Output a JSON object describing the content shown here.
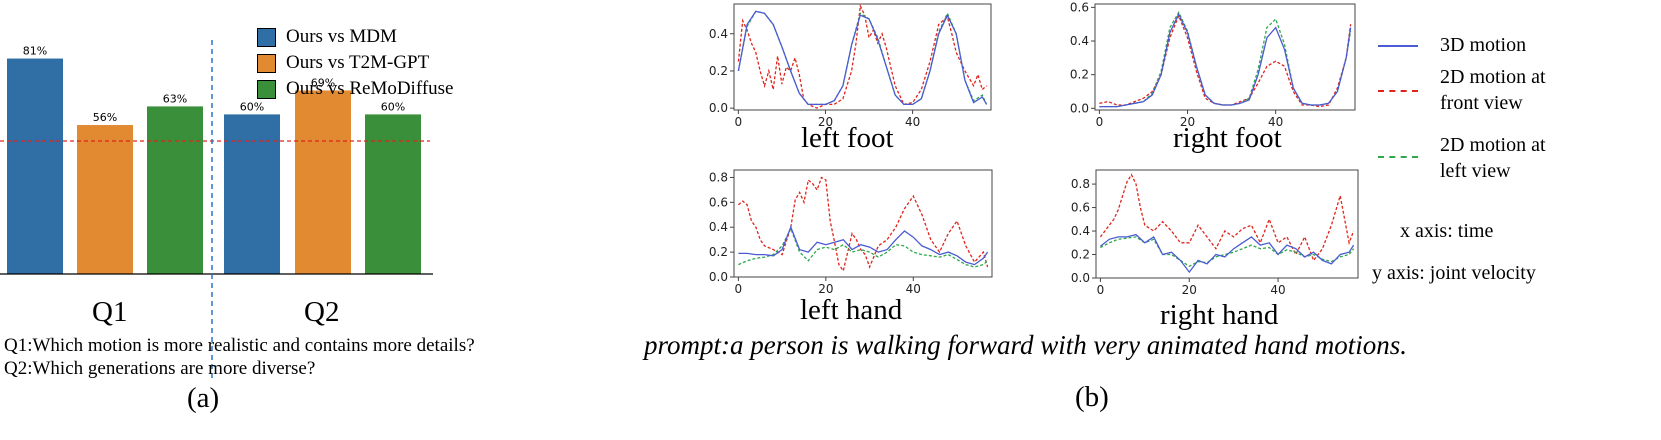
{
  "bar_chart": {
    "colors": [
      "#2f6fa5",
      "#e18a31",
      "#3a8f3a"
    ],
    "ref_line_color": "#e0241b",
    "divider_color": "#2a73c9"
  },
  "line_charts": {
    "colors": {
      "3d": "#4a5bd4",
      "front": "#e0241b",
      "left": "#2ea84a"
    }
  },
  "text": {
    "legend_a": [
      "Ours vs MDM",
      "Ours vs T2M-GPT",
      "Ours vs ReMoDiffuse"
    ],
    "q1": "Q1",
    "q2": "Q2",
    "question1": "Q1:Which motion is more realistic and contains more details?",
    "question2": "Q2:Which generations are more diverse?",
    "label_a": "(a)",
    "label_b": "(b)",
    "legend_b_3d": "3D motion",
    "legend_b_front_1": "2D motion at",
    "legend_b_front_2": "front view",
    "legend_b_left_1": "2D motion at",
    "legend_b_left_2": "left view",
    "x_axis_note": "x axis: time",
    "y_axis_note": "y axis: joint velocity",
    "prompt": "prompt:a person is walking forward with very animated hand motions."
  },
  "chart_data": [
    {
      "type": "bar",
      "groups": [
        "Q1",
        "Q2"
      ],
      "series": [
        {
          "name": "Ours vs MDM",
          "values": [
            81,
            60
          ],
          "labels": [
            "81%",
            "60%"
          ]
        },
        {
          "name": "Ours vs T2M-GPT",
          "values": [
            56,
            69
          ],
          "labels": [
            "56%",
            "69%"
          ]
        },
        {
          "name": "Ours vs ReMoDiffuse",
          "values": [
            63,
            60
          ],
          "labels": [
            "63%",
            "60%"
          ]
        }
      ],
      "reference_line": 50,
      "ylim": [
        0,
        100
      ]
    },
    {
      "type": "line",
      "title": "left foot",
      "xlim": [
        -1,
        58
      ],
      "ylim": [
        -0.01,
        0.56
      ],
      "xticks": [
        0,
        20,
        40
      ],
      "yticks": [
        0.0,
        0.2,
        0.4
      ],
      "series": [
        {
          "name": "3D motion",
          "x": [
            0,
            2,
            4,
            6,
            8,
            10,
            12,
            14,
            16,
            18,
            20,
            22,
            24,
            26,
            28,
            30,
            32,
            34,
            36,
            38,
            40,
            42,
            44,
            46,
            48,
            50,
            52,
            54,
            56,
            57
          ],
          "y": [
            0.2,
            0.45,
            0.52,
            0.51,
            0.45,
            0.33,
            0.2,
            0.08,
            0.02,
            0.02,
            0.02,
            0.04,
            0.12,
            0.34,
            0.5,
            0.48,
            0.37,
            0.22,
            0.07,
            0.02,
            0.02,
            0.05,
            0.2,
            0.4,
            0.5,
            0.4,
            0.15,
            0.03,
            0.06,
            0.02
          ]
        },
        {
          "name": "2D motion at front view",
          "x": [
            0,
            1,
            2,
            3,
            4,
            5,
            6,
            7,
            8,
            9,
            10,
            11,
            12,
            13,
            14,
            15,
            16,
            18,
            20,
            22,
            24,
            26,
            27,
            28,
            29,
            30,
            31,
            32,
            33,
            34,
            35,
            36,
            38,
            40,
            42,
            44,
            46,
            48,
            49,
            50,
            52,
            54,
            55,
            56,
            57
          ],
          "y": [
            0.25,
            0.47,
            0.42,
            0.35,
            0.3,
            0.2,
            0.12,
            0.2,
            0.1,
            0.28,
            0.13,
            0.22,
            0.2,
            0.27,
            0.18,
            0.05,
            0.02,
            0.0,
            0.02,
            0.02,
            0.05,
            0.2,
            0.35,
            0.55,
            0.5,
            0.38,
            0.42,
            0.35,
            0.4,
            0.32,
            0.22,
            0.12,
            0.02,
            0.03,
            0.1,
            0.25,
            0.45,
            0.49,
            0.4,
            0.3,
            0.2,
            0.12,
            0.18,
            0.1,
            0.12
          ]
        },
        {
          "name": "2D motion at left view",
          "x": [
            0,
            2,
            4,
            6,
            8,
            10,
            12,
            14,
            16,
            18,
            20,
            22,
            24,
            26,
            28,
            30,
            32,
            34,
            36,
            38,
            40,
            42,
            44,
            46,
            48,
            50,
            52,
            54,
            56,
            57
          ],
          "y": [
            0.2,
            0.44,
            0.52,
            0.51,
            0.45,
            0.33,
            0.2,
            0.08,
            0.02,
            0.02,
            0.02,
            0.04,
            0.12,
            0.34,
            0.51,
            0.48,
            0.38,
            0.22,
            0.07,
            0.02,
            0.02,
            0.05,
            0.2,
            0.41,
            0.51,
            0.4,
            0.15,
            0.04,
            0.07,
            0.02
          ]
        }
      ]
    },
    {
      "type": "line",
      "title": "right foot",
      "xlim": [
        -1,
        58
      ],
      "ylim": [
        -0.01,
        0.62
      ],
      "xticks": [
        0,
        20,
        40
      ],
      "yticks": [
        0.0,
        0.2,
        0.4,
        0.6
      ],
      "series": [
        {
          "name": "3D motion",
          "x": [
            0,
            2,
            4,
            6,
            8,
            10,
            12,
            14,
            16,
            18,
            20,
            22,
            24,
            26,
            28,
            30,
            32,
            34,
            36,
            38,
            40,
            42,
            44,
            46,
            48,
            50,
            52,
            54,
            56,
            57
          ],
          "y": [
            0.01,
            0.01,
            0.01,
            0.02,
            0.03,
            0.04,
            0.08,
            0.2,
            0.45,
            0.56,
            0.45,
            0.25,
            0.08,
            0.03,
            0.02,
            0.02,
            0.03,
            0.05,
            0.2,
            0.42,
            0.48,
            0.35,
            0.12,
            0.03,
            0.02,
            0.02,
            0.03,
            0.1,
            0.3,
            0.48
          ]
        },
        {
          "name": "2D motion at front view",
          "x": [
            0,
            2,
            4,
            6,
            8,
            10,
            12,
            14,
            16,
            18,
            20,
            22,
            24,
            26,
            28,
            30,
            32,
            34,
            36,
            38,
            40,
            42,
            44,
            46,
            48,
            50,
            52,
            54,
            56,
            57
          ],
          "y": [
            0.03,
            0.04,
            0.02,
            0.02,
            0.04,
            0.06,
            0.1,
            0.2,
            0.42,
            0.55,
            0.42,
            0.22,
            0.06,
            0.03,
            0.02,
            0.02,
            0.04,
            0.06,
            0.15,
            0.25,
            0.28,
            0.25,
            0.1,
            0.02,
            0.02,
            0.01,
            0.02,
            0.12,
            0.3,
            0.5
          ]
        },
        {
          "name": "2D motion at left view",
          "x": [
            0,
            2,
            4,
            6,
            8,
            10,
            12,
            14,
            16,
            18,
            20,
            22,
            24,
            26,
            28,
            30,
            32,
            34,
            36,
            38,
            40,
            42,
            44,
            46,
            48,
            50,
            52,
            54,
            56,
            57
          ],
          "y": [
            0.01,
            0.01,
            0.01,
            0.02,
            0.03,
            0.04,
            0.09,
            0.22,
            0.48,
            0.57,
            0.46,
            0.25,
            0.08,
            0.03,
            0.02,
            0.02,
            0.03,
            0.06,
            0.23,
            0.48,
            0.53,
            0.38,
            0.12,
            0.03,
            0.02,
            0.02,
            0.03,
            0.1,
            0.3,
            0.46
          ]
        }
      ]
    },
    {
      "type": "line",
      "title": "left hand",
      "xlim": [
        -1,
        58
      ],
      "ylim": [
        0.0,
        0.86
      ],
      "xticks": [
        0,
        20,
        40
      ],
      "yticks": [
        0.0,
        0.2,
        0.4,
        0.6,
        0.8
      ],
      "series": [
        {
          "name": "3D motion",
          "x": [
            0,
            2,
            4,
            6,
            8,
            10,
            12,
            14,
            16,
            18,
            20,
            22,
            24,
            26,
            28,
            30,
            32,
            34,
            36,
            38,
            40,
            42,
            44,
            46,
            48,
            50,
            52,
            54,
            56,
            57
          ],
          "y": [
            0.19,
            0.19,
            0.18,
            0.18,
            0.17,
            0.22,
            0.4,
            0.22,
            0.2,
            0.28,
            0.26,
            0.28,
            0.3,
            0.22,
            0.26,
            0.24,
            0.2,
            0.22,
            0.3,
            0.37,
            0.32,
            0.25,
            0.22,
            0.18,
            0.2,
            0.17,
            0.12,
            0.1,
            0.15,
            0.2
          ]
        },
        {
          "name": "2D motion at front view",
          "x": [
            0,
            1,
            2,
            3,
            4,
            5,
            6,
            8,
            10,
            12,
            13,
            14,
            15,
            16,
            17,
            18,
            19,
            20,
            21,
            22,
            23,
            24,
            25,
            26,
            27,
            28,
            29,
            30,
            32,
            34,
            36,
            38,
            40,
            42,
            44,
            46,
            48,
            50,
            52,
            54,
            56,
            57
          ],
          "y": [
            0.58,
            0.61,
            0.58,
            0.45,
            0.4,
            0.3,
            0.25,
            0.22,
            0.18,
            0.4,
            0.62,
            0.68,
            0.6,
            0.78,
            0.75,
            0.7,
            0.8,
            0.78,
            0.45,
            0.28,
            0.1,
            0.05,
            0.2,
            0.35,
            0.3,
            0.22,
            0.18,
            0.08,
            0.25,
            0.3,
            0.4,
            0.55,
            0.65,
            0.5,
            0.3,
            0.2,
            0.35,
            0.45,
            0.25,
            0.12,
            0.2,
            0.08
          ]
        },
        {
          "name": "2D motion at left view",
          "x": [
            0,
            2,
            4,
            6,
            8,
            10,
            12,
            14,
            16,
            18,
            20,
            22,
            24,
            26,
            28,
            30,
            32,
            34,
            36,
            38,
            40,
            42,
            44,
            46,
            48,
            50,
            52,
            54,
            56,
            57
          ],
          "y": [
            0.1,
            0.13,
            0.15,
            0.16,
            0.18,
            0.25,
            0.39,
            0.2,
            0.13,
            0.22,
            0.24,
            0.22,
            0.26,
            0.2,
            0.22,
            0.2,
            0.16,
            0.2,
            0.26,
            0.25,
            0.2,
            0.18,
            0.17,
            0.16,
            0.18,
            0.14,
            0.1,
            0.08,
            0.1,
            0.13
          ]
        }
      ]
    },
    {
      "type": "line",
      "title": "right hand",
      "xlim": [
        -1,
        58
      ],
      "ylim": [
        0.0,
        0.92
      ],
      "xticks": [
        0,
        20,
        40
      ],
      "yticks": [
        0.0,
        0.2,
        0.4,
        0.6,
        0.8
      ],
      "series": [
        {
          "name": "3D motion",
          "x": [
            0,
            2,
            4,
            6,
            8,
            10,
            12,
            14,
            16,
            18,
            20,
            22,
            24,
            26,
            28,
            30,
            32,
            34,
            36,
            38,
            40,
            42,
            44,
            46,
            48,
            50,
            52,
            54,
            56,
            57
          ],
          "y": [
            0.27,
            0.33,
            0.35,
            0.35,
            0.37,
            0.3,
            0.35,
            0.2,
            0.22,
            0.15,
            0.05,
            0.15,
            0.12,
            0.2,
            0.18,
            0.25,
            0.3,
            0.35,
            0.28,
            0.3,
            0.2,
            0.28,
            0.25,
            0.18,
            0.22,
            0.15,
            0.12,
            0.2,
            0.22,
            0.28
          ]
        },
        {
          "name": "2D motion at front view",
          "x": [
            0,
            1,
            2,
            3,
            4,
            5,
            6,
            7,
            8,
            9,
            10,
            12,
            14,
            16,
            18,
            20,
            22,
            24,
            26,
            28,
            30,
            32,
            34,
            36,
            38,
            40,
            42,
            44,
            46,
            48,
            50,
            52,
            54,
            56,
            57
          ],
          "y": [
            0.35,
            0.4,
            0.45,
            0.5,
            0.58,
            0.7,
            0.82,
            0.88,
            0.8,
            0.6,
            0.45,
            0.4,
            0.48,
            0.4,
            0.3,
            0.3,
            0.45,
            0.35,
            0.25,
            0.4,
            0.35,
            0.42,
            0.45,
            0.3,
            0.5,
            0.3,
            0.35,
            0.2,
            0.35,
            0.15,
            0.25,
            0.45,
            0.7,
            0.3,
            0.4
          ]
        },
        {
          "name": "2D motion at left view",
          "x": [
            0,
            2,
            4,
            6,
            8,
            10,
            12,
            14,
            16,
            18,
            20,
            22,
            24,
            26,
            28,
            30,
            32,
            34,
            36,
            38,
            40,
            42,
            44,
            46,
            48,
            50,
            52,
            54,
            56,
            57
          ],
          "y": [
            0.26,
            0.3,
            0.33,
            0.34,
            0.35,
            0.3,
            0.33,
            0.2,
            0.2,
            0.15,
            0.1,
            0.14,
            0.13,
            0.18,
            0.2,
            0.22,
            0.25,
            0.28,
            0.25,
            0.26,
            0.2,
            0.24,
            0.22,
            0.18,
            0.2,
            0.16,
            0.14,
            0.18,
            0.2,
            0.25
          ]
        }
      ]
    }
  ]
}
